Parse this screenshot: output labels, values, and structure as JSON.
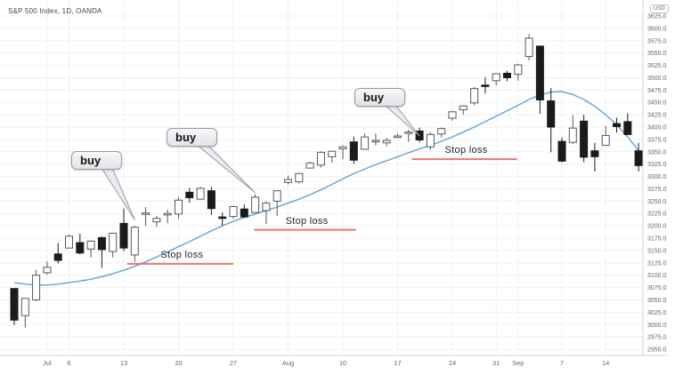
{
  "header": {
    "title": "S&P 500 Index, 1D, OANDA",
    "currency_button": "USD"
  },
  "colors": {
    "background": "#ffffff",
    "grid": "#eef0f4",
    "axis_border": "#ced2da",
    "axis_text": "#62666d",
    "candle_up_fill": "#ffffff",
    "candle_up_border": "#56585c",
    "candle_down_fill": "#1b1b1b",
    "ma_line": "#5b9cd6",
    "stop_line": "#f2675e",
    "callout_fill": "#ececf0",
    "callout_border": "#989ba5"
  },
  "chart_data": {
    "type": "candlestick",
    "title": "S&P 500 Index, 1D, OANDA",
    "symbol": "S&P 500 Index",
    "interval": "1D",
    "exchange": "OANDA",
    "legend_position": "top-left",
    "grid": true,
    "y_axis": {
      "unit": "USD",
      "min": 2950,
      "max": 3625,
      "step": 25,
      "tick_labels": [
        "2950.0",
        "2975.0",
        "3000.0",
        "3025.0",
        "3050.0",
        "3075.0",
        "3100.0",
        "3125.0",
        "3150.0",
        "3175.0",
        "3200.0",
        "3225.0",
        "3250.0",
        "3275.0",
        "3300.0",
        "3325.0",
        "3350.0",
        "3375.0",
        "3400.0",
        "3425.0",
        "3450.0",
        "3475.0",
        "3500.0",
        "3525.0",
        "3550.0",
        "3575.0",
        "3600.0",
        "3625.0"
      ]
    },
    "x_ticks": [
      {
        "label": "Jul",
        "bar": 3
      },
      {
        "label": "6",
        "bar": 5
      },
      {
        "label": "13",
        "bar": 10
      },
      {
        "label": "20",
        "bar": 15
      },
      {
        "label": "27",
        "bar": 20
      },
      {
        "label": "Aug",
        "bar": 25
      },
      {
        "label": "10",
        "bar": 30
      },
      {
        "label": "17",
        "bar": 35
      },
      {
        "label": "24",
        "bar": 40
      },
      {
        "label": "31",
        "bar": 44
      },
      {
        "label": "Sep",
        "bar": 46
      },
      {
        "label": "7",
        "bar": 50
      },
      {
        "label": "14",
        "bar": 54
      }
    ],
    "candle_fields": [
      "date",
      "open",
      "high",
      "low",
      "close"
    ],
    "candles": [
      [
        "Jun 26",
        3073,
        3073,
        2999,
        3009
      ],
      [
        "Jun 29",
        3018,
        3053,
        2994,
        3053
      ],
      [
        "Jun 30",
        3050,
        3111,
        3047,
        3100
      ],
      [
        "Jul 1",
        3105,
        3128,
        3101,
        3116
      ],
      [
        "Jul 2",
        3143,
        3165,
        3124,
        3130
      ],
      [
        "Jul 6",
        3155,
        3182,
        3155,
        3179
      ],
      [
        "Jul 7",
        3166,
        3184,
        3142,
        3145
      ],
      [
        "Jul 8",
        3153,
        3171,
        3136,
        3169
      ],
      [
        "Jul 9",
        3176,
        3179,
        3115,
        3152
      ],
      [
        "Jul 10",
        3148,
        3186,
        3136,
        3185
      ],
      [
        "Jul 13",
        3205,
        3235,
        3149,
        3155
      ],
      [
        "Jul 14",
        3141,
        3200,
        3127,
        3197
      ],
      [
        "Jul 15",
        3225,
        3238,
        3200,
        3226
      ],
      [
        "Jul 16",
        3208,
        3220,
        3198,
        3215
      ],
      [
        "Jul 17",
        3224,
        3233,
        3205,
        3225
      ],
      [
        "Jul 20",
        3224,
        3258,
        3215,
        3252
      ],
      [
        "Jul 21",
        3268,
        3277,
        3247,
        3257
      ],
      [
        "Jul 22",
        3254,
        3279,
        3253,
        3276
      ],
      [
        "Jul 23",
        3271,
        3279,
        3222,
        3235
      ],
      [
        "Jul 24",
        3218,
        3227,
        3200,
        3215
      ],
      [
        "Jul 27",
        3219,
        3241,
        3214,
        3239
      ],
      [
        "Jul 28",
        3234,
        3243,
        3216,
        3218
      ],
      [
        "Jul 29",
        3227,
        3264,
        3227,
        3258
      ],
      [
        "Jul 30",
        3231,
        3250,
        3204,
        3246
      ],
      [
        "Jul 31",
        3250,
        3272,
        3220,
        3271
      ],
      [
        "Aug 3",
        3288,
        3302,
        3284,
        3294
      ],
      [
        "Aug 4",
        3289,
        3306,
        3286,
        3306
      ],
      [
        "Aug 5",
        3317,
        3330,
        3317,
        3327
      ],
      [
        "Aug 6",
        3323,
        3351,
        3318,
        3349
      ],
      [
        "Aug 7",
        3340,
        3352,
        3328,
        3351
      ],
      [
        "Aug 10",
        3356,
        3363,
        3335,
        3360
      ],
      [
        "Aug 11",
        3370,
        3381,
        3326,
        3333
      ],
      [
        "Aug 12",
        3355,
        3387,
        3355,
        3380
      ],
      [
        "Aug 13",
        3372,
        3387,
        3363,
        3373
      ],
      [
        "Aug 14",
        3368,
        3378,
        3361,
        3373
      ],
      [
        "Aug 17",
        3380,
        3387,
        3379,
        3382
      ],
      [
        "Aug 18",
        3387,
        3395,
        3370,
        3390
      ],
      [
        "Aug 19",
        3392,
        3399,
        3369,
        3374
      ],
      [
        "Aug 20",
        3360,
        3390,
        3354,
        3385
      ],
      [
        "Aug 21",
        3386,
        3399,
        3379,
        3397
      ],
      [
        "Aug 24",
        3418,
        3432,
        3413,
        3431
      ],
      [
        "Aug 25",
        3435,
        3444,
        3425,
        3443
      ],
      [
        "Aug 26",
        3449,
        3481,
        3444,
        3478
      ],
      [
        "Aug 27",
        3485,
        3501,
        3468,
        3484
      ],
      [
        "Aug 28",
        3494,
        3509,
        3484,
        3508
      ],
      [
        "Aug 31",
        3509,
        3514,
        3493,
        3500
      ],
      [
        "Sep 1",
        3507,
        3528,
        3494,
        3526
      ],
      [
        "Sep 2",
        3543,
        3588,
        3535,
        3580
      ],
      [
        "Sep 3",
        3564,
        3564,
        3427,
        3455
      ],
      [
        "Sep 4",
        3453,
        3479,
        3349,
        3400
      ],
      [
        "Sep 8",
        3371,
        3379,
        3329,
        3331
      ],
      [
        "Sep 9",
        3369,
        3424,
        3366,
        3398
      ],
      [
        "Sep 10",
        3412,
        3425,
        3329,
        3339
      ],
      [
        "Sep 11",
        3352,
        3368,
        3310,
        3340
      ],
      [
        "Sep 14",
        3363,
        3402,
        3363,
        3383
      ],
      [
        "Sep 15",
        3407,
        3419,
        3389,
        3401
      ],
      [
        "Sep 16",
        3411,
        3428,
        3384,
        3385
      ],
      [
        "Sep 17",
        3352,
        3368,
        3310,
        3322
      ]
    ],
    "moving_average": [
      3085,
      3082,
      3080,
      3080,
      3082,
      3085,
      3088,
      3092,
      3097,
      3103,
      3110,
      3118,
      3127,
      3137,
      3147,
      3158,
      3168,
      3179,
      3190,
      3200,
      3209,
      3217,
      3224,
      3231,
      3238,
      3246,
      3254,
      3263,
      3273,
      3284,
      3295,
      3306,
      3315,
      3324,
      3332,
      3340,
      3348,
      3356,
      3363,
      3371,
      3380,
      3390,
      3400,
      3411,
      3422,
      3433,
      3444,
      3456,
      3465,
      3471,
      3472,
      3466,
      3456,
      3442,
      3425,
      3405,
      3380,
      3352
    ],
    "annotations": {
      "callouts": [
        {
          "label": "buy",
          "tip_bar": 11,
          "tip_price": 3212,
          "bubble_x": 80,
          "bubble_y": 170
        },
        {
          "label": "buy",
          "tip_bar": 22,
          "tip_price": 3267,
          "bubble_x": 187,
          "bubble_y": 144
        },
        {
          "label": "buy",
          "tip_bar": 37,
          "tip_price": 3382,
          "bubble_x": 398,
          "bubble_y": 99
        }
      ],
      "stop_lines": [
        {
          "label": "Stop loss",
          "price": 3123,
          "bar_start": 10.3,
          "bar_end": 20.0
        },
        {
          "label": "Stop loss",
          "price": 3192,
          "bar_start": 21.9,
          "bar_end": 31.2
        },
        {
          "label": "Stop loss",
          "price": 3335,
          "bar_start": 36.3,
          "bar_end": 45.9
        }
      ]
    }
  }
}
